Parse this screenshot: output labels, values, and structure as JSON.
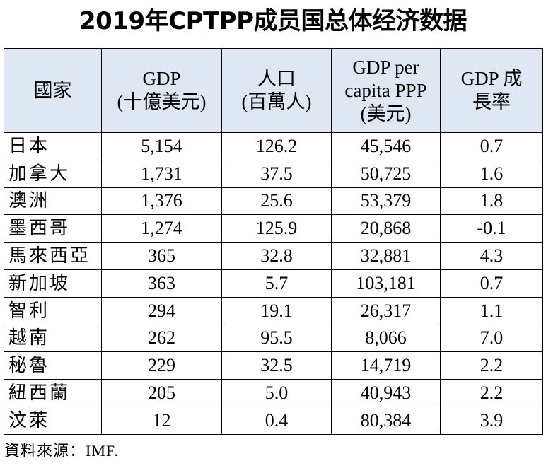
{
  "title": "2019年CPTPP成员国总体经济数据",
  "table": {
    "headers": [
      {
        "lines": [
          "國家"
        ]
      },
      {
        "lines": [
          "GDP",
          "(十億美元)"
        ]
      },
      {
        "lines": [
          "人口",
          "(百萬人)"
        ]
      },
      {
        "lines": [
          "GDP per",
          "capita PPP",
          "(美元)"
        ]
      },
      {
        "lines": [
          "GDP 成",
          "長率"
        ]
      }
    ],
    "rows": [
      {
        "country": "日本",
        "gdp": "5,154",
        "population": "126.2",
        "gdp_per_capita": "45,546",
        "growth": "0.7"
      },
      {
        "country": "加拿大",
        "gdp": "1,731",
        "population": "37.5",
        "gdp_per_capita": "50,725",
        "growth": "1.6"
      },
      {
        "country": "澳洲",
        "gdp": "1,376",
        "population": "25.6",
        "gdp_per_capita": "53,379",
        "growth": "1.8"
      },
      {
        "country": "墨西哥",
        "gdp": "1,274",
        "population": "125.9",
        "gdp_per_capita": "20,868",
        "growth": "-0.1"
      },
      {
        "country": "馬來西亞",
        "gdp": "365",
        "population": "32.8",
        "gdp_per_capita": "32,881",
        "growth": "4.3"
      },
      {
        "country": "新加坡",
        "gdp": "363",
        "population": "5.7",
        "gdp_per_capita": "103,181",
        "growth": "0.7"
      },
      {
        "country": "智利",
        "gdp": "294",
        "population": "19.1",
        "gdp_per_capita": "26,317",
        "growth": "1.1"
      },
      {
        "country": "越南",
        "gdp": "262",
        "population": "95.5",
        "gdp_per_capita": "8,066",
        "growth": "7.0"
      },
      {
        "country": "秘魯",
        "gdp": "229",
        "population": "32.5",
        "gdp_per_capita": "14,719",
        "growth": "2.2"
      },
      {
        "country": "紐西蘭",
        "gdp": "205",
        "population": "5.0",
        "gdp_per_capita": "40,943",
        "growth": "2.2"
      },
      {
        "country": "汶萊",
        "gdp": "12",
        "population": "0.4",
        "gdp_per_capita": "80,384",
        "growth": "3.9"
      }
    ]
  },
  "source": "資料來源：IMF.",
  "colors": {
    "header_bg": "#dfe7f3",
    "border": "#000000",
    "text": "#000000"
  }
}
